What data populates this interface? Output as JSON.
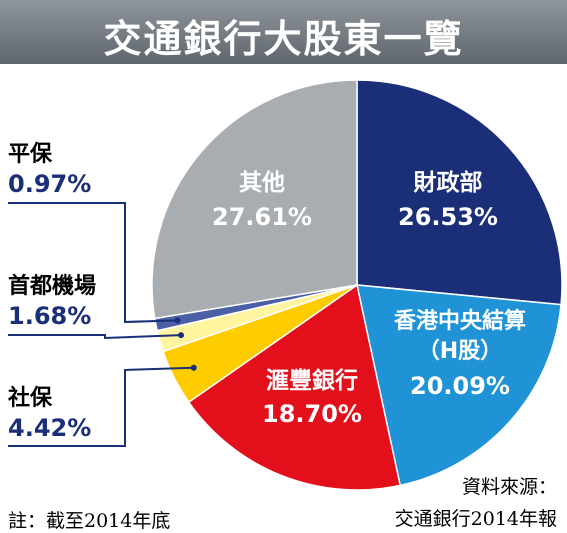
{
  "title": "交通銀行大股東一覽",
  "chart_data": {
    "type": "pie",
    "title": "交通銀行大股東一覽",
    "slices": [
      {
        "label": "財政部",
        "value": 26.53,
        "value_text": "26.53%",
        "color": "#1b2e78"
      },
      {
        "label": "香港中央結算",
        "sublabel": "（H股）",
        "value": 20.09,
        "value_text": "20.09%",
        "color": "#1f93d6"
      },
      {
        "label": "滙豐銀行",
        "value": 18.7,
        "value_text": "18.70%",
        "color": "#e3101b"
      },
      {
        "label": "社保",
        "value": 4.42,
        "value_text": "4.42%",
        "color": "#ffcc00"
      },
      {
        "label": "首都機場",
        "value": 1.68,
        "value_text": "1.68%",
        "color": "#fff4a0"
      },
      {
        "label": "平保",
        "value": 0.97,
        "value_text": "0.97%",
        "color": "#4a5fa6"
      },
      {
        "label": "其他",
        "value": 27.61,
        "value_text": "27.61%",
        "color": "#a8adb1"
      }
    ]
  },
  "note": "註：截至2014年底",
  "source": {
    "line1": "資料來源：",
    "line2": "交通銀行2014年報"
  }
}
